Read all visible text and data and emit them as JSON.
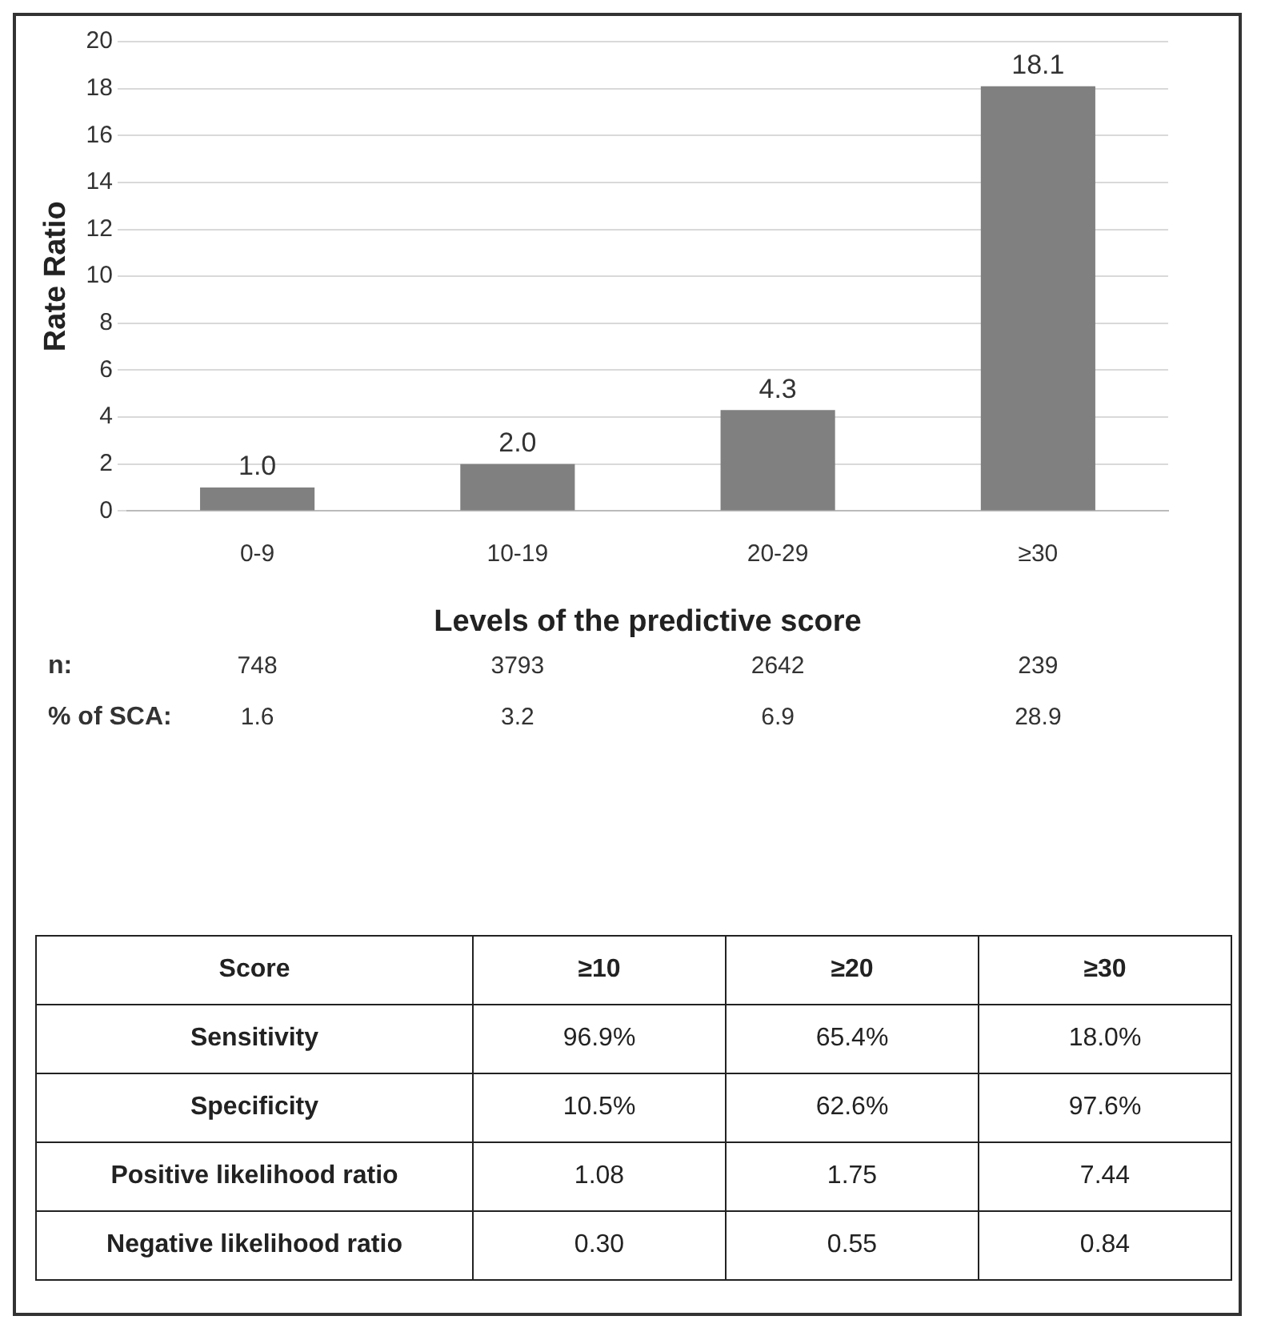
{
  "chart_data": [
    {
      "type": "bar",
      "xlabel": "Levels of the predictive score",
      "ylabel": "Rate Ratio",
      "categories": [
        "0-9",
        "10-19",
        "20-29",
        "≥30"
      ],
      "values": [
        1.0,
        2.0,
        4.3,
        18.1
      ],
      "value_labels": [
        "1.0",
        "2.0",
        "4.3",
        "18.1"
      ],
      "color": "#808080",
      "ylim": [
        0,
        20
      ],
      "yticks": [
        0,
        2,
        4,
        6,
        8,
        10,
        12,
        14,
        16,
        18,
        20
      ],
      "grid": "y",
      "annotations": [
        "n:",
        "748",
        "3793",
        "2642",
        "239",
        "% of SCA:",
        "1.6",
        "3.2",
        "6.9",
        "28.9"
      ]
    },
    {
      "type": "other",
      "categories": [
        "Score",
        "≥10",
        "≥20",
        "≥30"
      ],
      "annotations": [
        "Sensitivity",
        "96.9%",
        "65.4%",
        "18.0%",
        "Specificity",
        "10.5%",
        "62.6%",
        "97.6%",
        "Positive likelihood ratio",
        "1.08",
        "1.75",
        "7.44",
        "Negative likelihood ratio",
        "0.30",
        "0.55",
        "0.84"
      ]
    }
  ]
}
